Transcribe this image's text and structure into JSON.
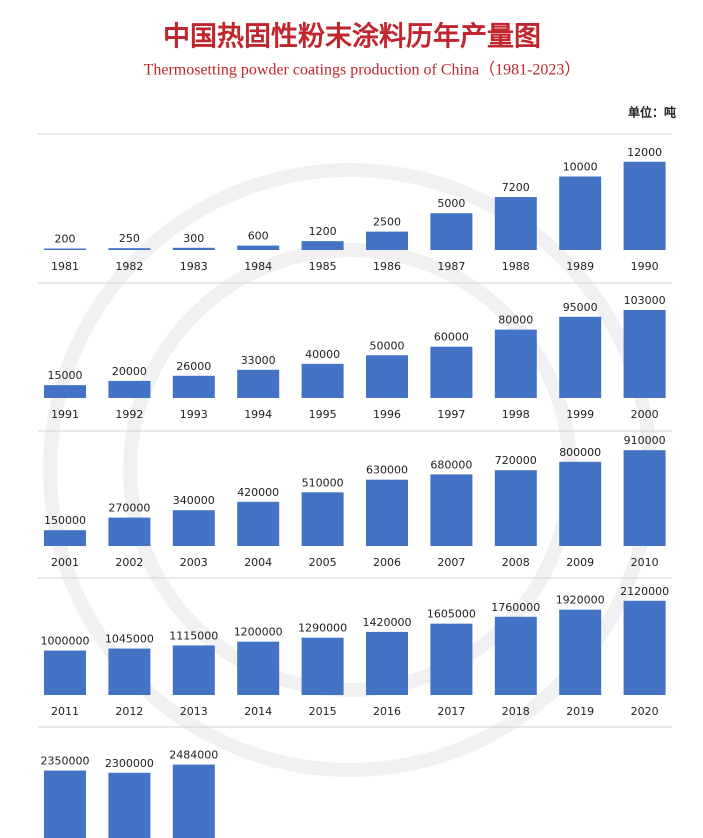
{
  "header": {
    "title": "中国热固性粉末涂料历年产量图",
    "subtitle": "Thermosetting powder coatings production of China（1981-2023）",
    "unit": "单位：吨"
  },
  "chart_data": [
    {
      "type": "bar",
      "color": "#4472c4",
      "ylim": [
        0,
        13600
      ],
      "categories": [
        "1981",
        "1982",
        "1983",
        "1984",
        "1985",
        "1986",
        "1987",
        "1988",
        "1989",
        "1990"
      ],
      "values": [
        200,
        250,
        300,
        600,
        1200,
        2500,
        5000,
        7200,
        10000,
        12000
      ]
    },
    {
      "type": "bar",
      "color": "#4472c4",
      "ylim": [
        0,
        117000
      ],
      "categories": [
        "1991",
        "1992",
        "1993",
        "1994",
        "1995",
        "1996",
        "1997",
        "1998",
        "1999",
        "2000"
      ],
      "values": [
        15000,
        20000,
        26000,
        33000,
        40000,
        50000,
        60000,
        80000,
        95000,
        103000
      ]
    },
    {
      "type": "bar",
      "color": "#4472c4",
      "ylim": [
        0,
        950000
      ],
      "categories": [
        "2001",
        "2002",
        "2003",
        "2004",
        "2005",
        "2006",
        "2007",
        "2008",
        "2009",
        "2010"
      ],
      "values": [
        150000,
        270000,
        340000,
        420000,
        510000,
        630000,
        680000,
        720000,
        800000,
        910000
      ]
    },
    {
      "type": "bar",
      "color": "#4472c4",
      "ylim": [
        0,
        2250000
      ],
      "categories": [
        "2011",
        "2012",
        "2013",
        "2014",
        "2015",
        "2016",
        "2017",
        "2018",
        "2019",
        "2020"
      ],
      "values": [
        1000000,
        1045000,
        1115000,
        1200000,
        1290000,
        1420000,
        1605000,
        1760000,
        1920000,
        2120000
      ]
    },
    {
      "type": "bar",
      "color": "#4472c4",
      "ylim": [
        0,
        2250000
      ],
      "categories": [
        null,
        null,
        null
      ],
      "values": [
        2350000,
        2300000,
        2484000
      ]
    }
  ]
}
